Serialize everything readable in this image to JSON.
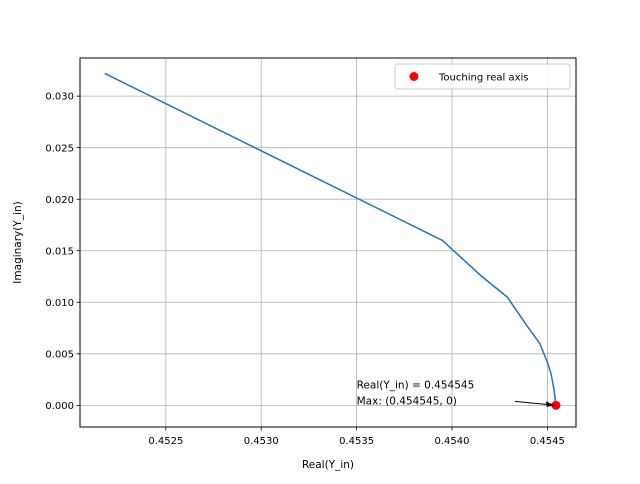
{
  "chart_data": {
    "type": "line",
    "title": "",
    "xlabel": "Real(Y_in)",
    "ylabel": "Imaginary(Y_in)",
    "xlim": [
      0.45205,
      0.45465
    ],
    "ylim": [
      -0.0021,
      0.0337
    ],
    "grid": true,
    "legend_placement": "top-right",
    "x_ticks": [
      {
        "value": 0.4525,
        "label": "0.4525"
      },
      {
        "value": 0.453,
        "label": "0.4530"
      },
      {
        "value": 0.4535,
        "label": "0.4535"
      },
      {
        "value": 0.454,
        "label": "0.4540"
      },
      {
        "value": 0.4545,
        "label": "0.4545"
      }
    ],
    "y_ticks": [
      {
        "value": 0.0,
        "label": "0.000"
      },
      {
        "value": 0.005,
        "label": "0.005"
      },
      {
        "value": 0.01,
        "label": "0.010"
      },
      {
        "value": 0.015,
        "label": "0.015"
      },
      {
        "value": 0.02,
        "label": "0.020"
      },
      {
        "value": 0.025,
        "label": "0.025"
      },
      {
        "value": 0.03,
        "label": "0.030"
      }
    ],
    "series": [
      {
        "color": "#1f77b4",
        "x": [
          0.45218,
          0.45395,
          0.45415,
          0.45429,
          0.45439,
          0.45446,
          0.4545,
          0.45452,
          0.454535,
          0.454545
        ],
        "y": [
          0.0322,
          0.016,
          0.0126,
          0.0105,
          0.0078,
          0.006,
          0.0042,
          0.003,
          0.0015,
          0.0
        ]
      }
    ],
    "points": [
      {
        "name": "Touching real axis",
        "x": 0.454545,
        "y": 0.0,
        "color": "#ff0000"
      }
    ],
    "annotation": {
      "line1": "Real(Y_in) = 0.454545",
      "line2": "Max: (0.454545, 0)",
      "text_x": 0.4535,
      "text_y": 0.0,
      "arrow_to_x": 0.454545,
      "arrow_to_y": 0.0
    }
  }
}
